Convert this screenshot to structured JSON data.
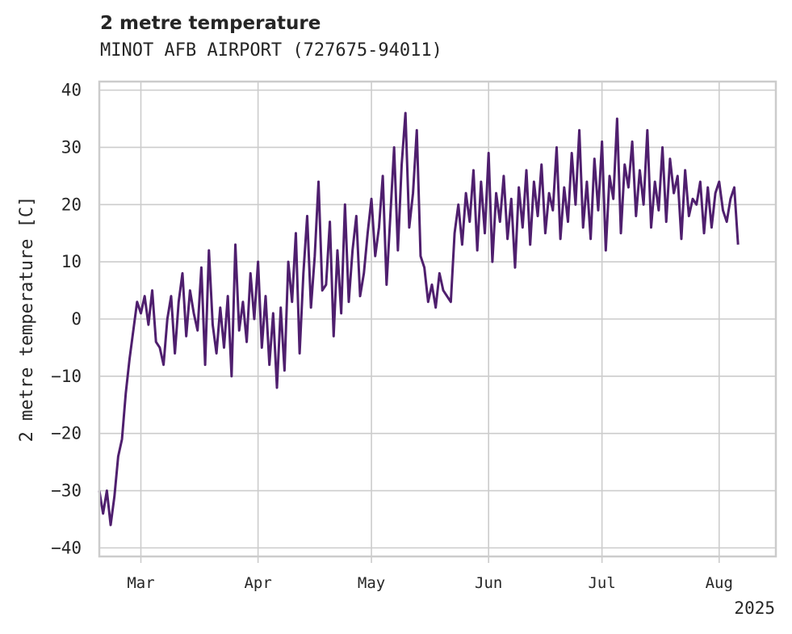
{
  "chart_data": {
    "type": "line",
    "title": "2 metre temperature",
    "subtitle": "MINOT AFB AIRPORT (727675-94011)",
    "xlabel": "",
    "ylabel": "2 metre temperature [C]",
    "ylim": [
      -41.5,
      41.5
    ],
    "yticks": [
      40,
      30,
      20,
      10,
      0,
      -10,
      -20,
      -30,
      -40
    ],
    "ytick_labels": [
      "40",
      "30",
      "20",
      "10",
      "0",
      "−10",
      "−20",
      "−30",
      "−40"
    ],
    "xlim": [
      "2025-02-18",
      "2025-08-16"
    ],
    "xticks": [
      "2025-03-01",
      "2025-04-01",
      "2025-05-01",
      "2025-06-01",
      "2025-07-01",
      "2025-08-01"
    ],
    "xtick_labels": [
      "Mar",
      "Apr",
      "May",
      "Jun",
      "Jul",
      "Aug"
    ],
    "year_label": "2025",
    "grid": true,
    "line_color": "#4f1f6e",
    "series": [
      {
        "name": "2 metre temperature",
        "x_start": "2025-02-18",
        "step_days": 1,
        "values": [
          -30,
          -34,
          -30,
          -36,
          -31,
          -24,
          -21,
          -13,
          -7,
          -2,
          3,
          1,
          4,
          -1,
          5,
          -4,
          -5,
          -8,
          0,
          4,
          -6,
          3,
          8,
          -3,
          5,
          1,
          -2,
          9,
          -8,
          12,
          -1,
          -6,
          2,
          -5,
          4,
          -10,
          13,
          -2,
          3,
          -4,
          8,
          0,
          10,
          -5,
          4,
          -8,
          1,
          -12,
          2,
          -9,
          10,
          3,
          15,
          -6,
          8,
          18,
          2,
          11,
          24,
          5,
          6,
          17,
          -3,
          12,
          1,
          20,
          3,
          12,
          18,
          4,
          8,
          15,
          21,
          11,
          16,
          25,
          6,
          18,
          30,
          12,
          27,
          36,
          16,
          22,
          33,
          11,
          9,
          3,
          6,
          2,
          8,
          5,
          4,
          3,
          15,
          20,
          13,
          22,
          17,
          26,
          12,
          24,
          15,
          29,
          10,
          22,
          17,
          25,
          14,
          21,
          9,
          23,
          16,
          26,
          13,
          24,
          18,
          27,
          15,
          22,
          19,
          30,
          14,
          23,
          17,
          29,
          20,
          33,
          16,
          24,
          14,
          28,
          19,
          31,
          12,
          25,
          21,
          35,
          15,
          27,
          23,
          31,
          18,
          26,
          20,
          33,
          16,
          24,
          19,
          30,
          17,
          28,
          22,
          25,
          14,
          26,
          18,
          21,
          20,
          24,
          15,
          23,
          16,
          22,
          24,
          19,
          17,
          21,
          23,
          13
        ]
      }
    ]
  }
}
